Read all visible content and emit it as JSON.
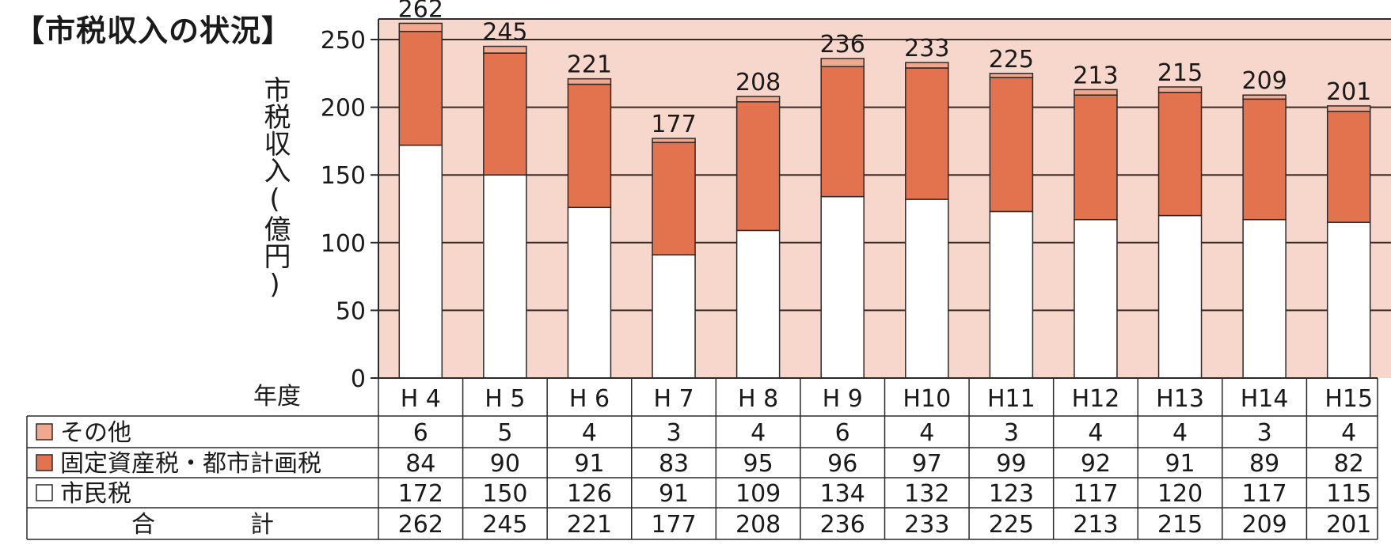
{
  "title": "【市税収入の状況】",
  "colors": {
    "plot_bg": "#f7d7cb",
    "gridline": "#3a2a26",
    "other": "#f2a78f",
    "fixed_asset": "#e3734f",
    "resident": "#ffffff",
    "outline": "#2a2a2a"
  },
  "chart_data": {
    "type": "bar",
    "stacked": true,
    "title": "【市税収入の状況】",
    "ylabel": "市税収入(億円)",
    "xlabel": "年度",
    "ylim": [
      0,
      260
    ],
    "yticks": [
      0,
      50,
      100,
      150,
      200,
      250
    ],
    "grid": true,
    "categories": [
      "H4",
      "H5",
      "H6",
      "H7",
      "H8",
      "H9",
      "H10",
      "H11",
      "H12",
      "H13",
      "H14",
      "H15"
    ],
    "category_labels": [
      "H 4",
      "H 5",
      "H 6",
      "H 7",
      "H 8",
      "H 9",
      "H10",
      "H11",
      "H12",
      "H13",
      "H14",
      "H15"
    ],
    "series": [
      {
        "key": "resident",
        "name": "市民税",
        "values": [
          172,
          150,
          126,
          91,
          109,
          134,
          132,
          123,
          117,
          120,
          117,
          115
        ]
      },
      {
        "key": "fixed_asset",
        "name": "固定資産税・都市計画税",
        "values": [
          84,
          90,
          91,
          83,
          95,
          96,
          97,
          99,
          92,
          91,
          89,
          82
        ]
      },
      {
        "key": "other",
        "name": "その他",
        "values": [
          6,
          5,
          4,
          3,
          4,
          6,
          4,
          3,
          4,
          4,
          3,
          4
        ]
      }
    ],
    "totals": [
      262,
      245,
      221,
      177,
      208,
      236,
      233,
      225,
      213,
      215,
      209,
      201
    ],
    "table": {
      "row_order": [
        "other",
        "fixed_asset",
        "resident",
        "total"
      ],
      "total_label": "合　　　　計"
    }
  }
}
